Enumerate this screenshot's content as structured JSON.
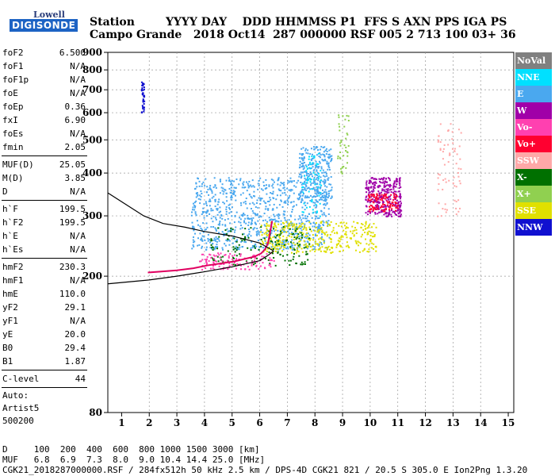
{
  "logo": {
    "line1": "Lowell",
    "line2": "DIGISONDE"
  },
  "header": {
    "line1": "Station        YYYY DAY    DDD HHMMSS P1  FFS S AXN PPS IGA PS",
    "line2": "Campo Grande   2018 Oct14  287 000000 RSF 005 2 713 100 03+ 36"
  },
  "params": [
    {
      "k": "foF2",
      "v": "6.500"
    },
    {
      "k": "foF1",
      "v": "N/A"
    },
    {
      "k": "foF1p",
      "v": "N/A"
    },
    {
      "k": "foE",
      "v": "N/A"
    },
    {
      "k": "foEp",
      "v": "0.36"
    },
    {
      "k": "fxI",
      "v": "6.90"
    },
    {
      "k": "foEs",
      "v": "N/A"
    },
    {
      "k": "fmin",
      "v": "2.05"
    },
    {
      "sep": true
    },
    {
      "k": "MUF(D)",
      "v": "25.05"
    },
    {
      "k": "M(D)",
      "v": "3.85"
    },
    {
      "k": "D",
      "v": "N/A"
    },
    {
      "sep": true
    },
    {
      "k": "h`F",
      "v": "199.5"
    },
    {
      "k": "h`F2",
      "v": "199.5"
    },
    {
      "k": "h`E",
      "v": "N/A"
    },
    {
      "k": "h`Es",
      "v": "N/A"
    },
    {
      "sep": true
    },
    {
      "k": "hmF2",
      "v": "230.3"
    },
    {
      "k": "hmF1",
      "v": "N/A"
    },
    {
      "k": "hmE",
      "v": "110.0"
    },
    {
      "k": "yF2",
      "v": "29.1"
    },
    {
      "k": "yF1",
      "v": "N/A"
    },
    {
      "k": "yE",
      "v": "20.0"
    },
    {
      "k": "B0",
      "v": "29.4"
    },
    {
      "k": "B1",
      "v": "1.87"
    },
    {
      "sep": true
    },
    {
      "k": "C-level",
      "v": "44"
    },
    {
      "sep": true
    }
  ],
  "autoscale": [
    "Auto:",
    "Artist5",
    "500200"
  ],
  "legend": [
    {
      "label": "NoVal",
      "color": "#808080"
    },
    {
      "label": "NNE",
      "color": "#00e0ff"
    },
    {
      "label": "E",
      "color": "#4aa8ef"
    },
    {
      "label": "W",
      "color": "#a000a8"
    },
    {
      "label": "Vo-",
      "color": "#ff40b0"
    },
    {
      "label": "Vo+",
      "color": "#ff0030"
    },
    {
      "label": "SSW",
      "color": "#ffa8a8"
    },
    {
      "label": "X-",
      "color": "#007000"
    },
    {
      "label": "X+",
      "color": "#90d050"
    },
    {
      "label": "SSE",
      "color": "#e0e000"
    },
    {
      "label": "NNW",
      "color": "#1010d0"
    }
  ],
  "footer": {
    "line1": "D     100  200  400  600  800 1000 1500 3000 [km]",
    "line2": "MUF   6.8  6.9  7.3  8.0  9.0 10.4 14.4 25.0 [MHz]",
    "line3": "CGK21_2018287000000.RSF / 284fx512h 50 kHz 2.5 km / DPS-4D CGK21 821 / 20.5 S 305.0 E Ion2Png 1.3.20"
  },
  "chart_data": {
    "type": "scatter",
    "title": "",
    "xlabel": "",
    "ylabel": "",
    "xlim": [
      0.5,
      15.2
    ],
    "ylim": [
      80,
      900
    ],
    "xticks": [
      1,
      2,
      3,
      4,
      5,
      6,
      7,
      8,
      9,
      10,
      11,
      12,
      13,
      14,
      15
    ],
    "yticks": [
      80,
      200,
      300,
      400,
      500,
      600,
      700,
      800,
      900
    ],
    "y_scale": "log",
    "grid": true,
    "dashed_grid_x": [
      2,
      3,
      4,
      5,
      6,
      7,
      8,
      9,
      10,
      11,
      12,
      13,
      14
    ],
    "dashed_grid_y": [
      200,
      300,
      400,
      500,
      600,
      700,
      800
    ],
    "trace_ordinary_x": [
      1.95,
      2.3,
      3.0,
      3.6,
      4.1,
      4.6,
      5.1,
      5.5,
      5.8,
      6.05,
      6.2,
      6.3,
      6.35,
      6.4,
      6.45
    ],
    "trace_ordinary_y": [
      205,
      206,
      208,
      211,
      215,
      218,
      221,
      225,
      228,
      233,
      240,
      250,
      262,
      275,
      290
    ],
    "profile_x": [
      0.5,
      2.0,
      3.0,
      4.0,
      5.0,
      6.0,
      6.3,
      6.5,
      6.0,
      5.0,
      4.0,
      3.3,
      2.5,
      1.8,
      0.5
    ],
    "profile_y": [
      190,
      195,
      200,
      206,
      213,
      222,
      230,
      237,
      250,
      262,
      270,
      278,
      285,
      300,
      350
    ],
    "clusters": [
      {
        "name": "E",
        "color": "#4aa8ef",
        "x": [
          3.5,
          8.5
        ],
        "y": [
          240,
          390
        ],
        "n": 900
      },
      {
        "name": "E",
        "color": "#4aa8ef",
        "x": [
          7.4,
          8.6
        ],
        "y": [
          330,
          480
        ],
        "n": 260
      },
      {
        "name": "W",
        "color": "#a000a8",
        "x": [
          9.8,
          11.1
        ],
        "y": [
          300,
          390
        ],
        "n": 320
      },
      {
        "name": "Vo+",
        "color": "#ff0030",
        "x": [
          9.9,
          11.0
        ],
        "y": [
          310,
          350
        ],
        "n": 100
      },
      {
        "name": "SSE",
        "color": "#e0e000",
        "x": [
          6.0,
          10.2
        ],
        "y": [
          235,
          290
        ],
        "n": 380
      },
      {
        "name": "X-",
        "color": "#007000",
        "x": [
          4.2,
          7.8
        ],
        "y": [
          215,
          280
        ],
        "n": 160
      },
      {
        "name": "Vo-",
        "color": "#ff40b0",
        "x": [
          3.8,
          6.5
        ],
        "y": [
          210,
          235
        ],
        "n": 120
      },
      {
        "name": "NNE",
        "color": "#00e0ff",
        "x": [
          7.5,
          8.2
        ],
        "y": [
          300,
          460
        ],
        "n": 60
      },
      {
        "name": "SSW",
        "color": "#ffa8a8",
        "x": [
          12.4,
          13.3
        ],
        "y": [
          300,
          560
        ],
        "n": 70
      },
      {
        "name": "X+",
        "color": "#90d050",
        "x": [
          8.8,
          9.2
        ],
        "y": [
          400,
          600
        ],
        "n": 40
      },
      {
        "name": "NNW",
        "color": "#1010d0",
        "x": [
          1.7,
          1.8
        ],
        "y": [
          600,
          740
        ],
        "n": 40
      }
    ]
  }
}
